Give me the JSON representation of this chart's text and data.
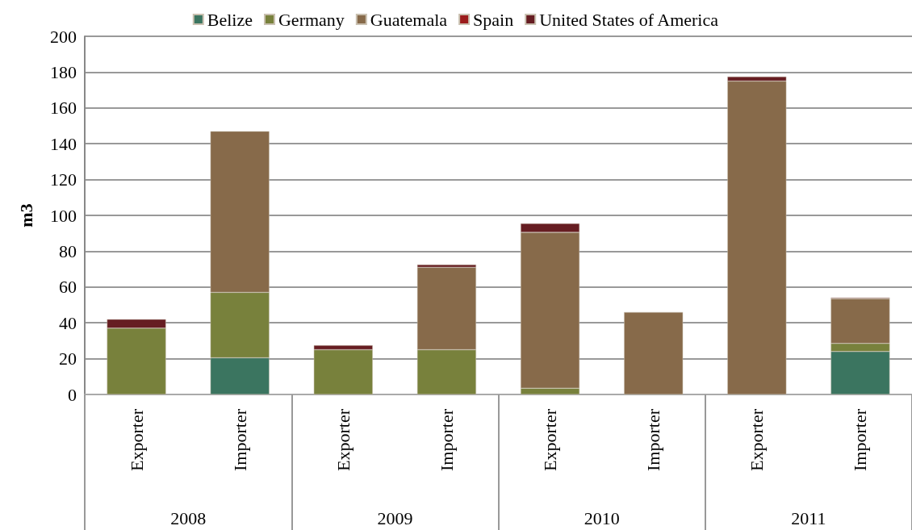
{
  "chart_data": {
    "type": "bar",
    "stacked": true,
    "ylabel": "m3",
    "categories": [
      "Exporter",
      "Importer",
      "Exporter",
      "Importer",
      "Exporter",
      "Importer",
      "Exporter",
      "Importer"
    ],
    "annotations": [
      "2008",
      "2009",
      "2010",
      "2011"
    ],
    "series": [
      {
        "name": "Belize",
        "color": "#3b7560",
        "values": [
          null,
          20.5,
          null,
          null,
          null,
          null,
          null,
          24
        ]
      },
      {
        "name": "Germany",
        "color": "#78813c",
        "values": [
          37,
          36.5,
          25,
          25,
          3.5,
          null,
          null,
          4.5
        ]
      },
      {
        "name": "Guatemala",
        "color": "#876a4a",
        "values": [
          null,
          90,
          null,
          46,
          87,
          46,
          175,
          25
        ]
      },
      {
        "name": "Spain",
        "color": "#9b1c1c",
        "values": [
          null,
          null,
          null,
          null,
          null,
          null,
          null,
          null
        ]
      },
      {
        "name": "United States of America",
        "color": "#661d22",
        "values": [
          5,
          null,
          2.5,
          1.5,
          5,
          null,
          2.5,
          0.5
        ]
      }
    ],
    "ylim": [
      0,
      200
    ],
    "yticks": [
      0,
      20,
      40,
      60,
      80,
      100,
      120,
      140,
      160,
      180,
      200
    ],
    "grid": "y",
    "legend": "top"
  }
}
